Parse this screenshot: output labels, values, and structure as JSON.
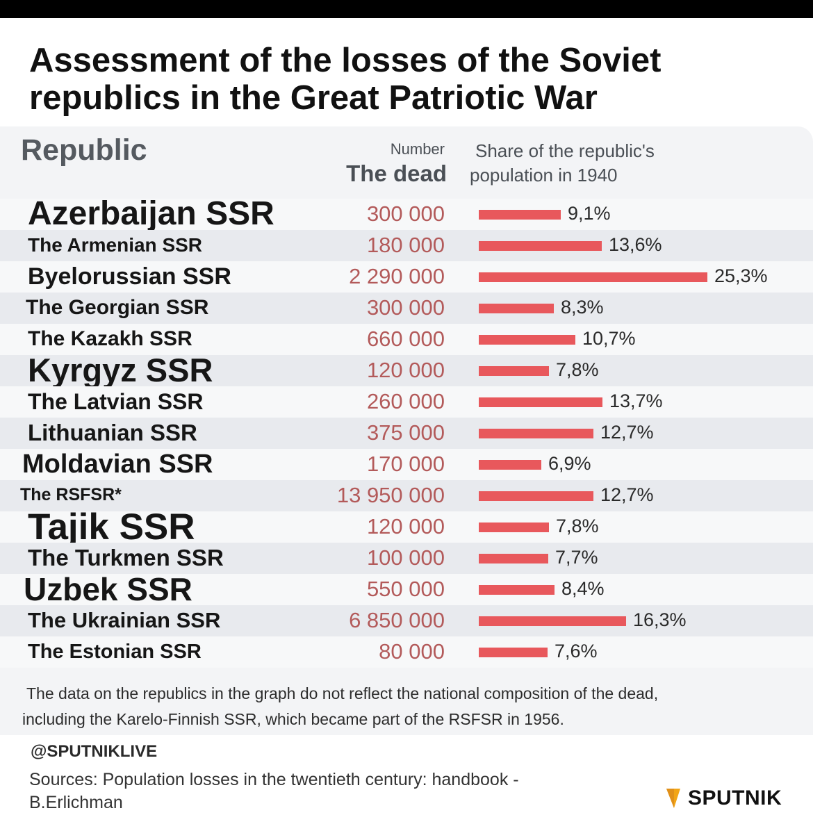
{
  "title": "Assessment of the losses of the Soviet republics in the Great Patriotic War",
  "header": {
    "republic": "Republic",
    "number": "Number",
    "the_dead": "The dead",
    "share_line1": "Share of the republic's",
    "share_line2": "population in 1940"
  },
  "chart_data": {
    "type": "bar",
    "title": "Assessment of the losses of the Soviet republics in the Great Patriotic War",
    "xlabel": "Share of the republic's population in 1940",
    "ylabel": "Republic",
    "categories": [
      "Azerbaijan SSR",
      "The Armenian SSR",
      "Byelorussian SSR",
      "The Georgian SSR",
      "The Kazakh SSR",
      "Kyrgyz SSR",
      "The Latvian SSR",
      "Lithuanian SSR",
      "Moldavian SSR",
      "The RSFSR*",
      "Tajik SSR",
      "The Turkmen SSR",
      "Uzbek SSR",
      "The Ukrainian SSR",
      "The Estonian SSR"
    ],
    "series": [
      {
        "name": "Number - The dead",
        "values": [
          300000,
          180000,
          2290000,
          300000,
          660000,
          120000,
          260000,
          375000,
          170000,
          13950000,
          120000,
          100000,
          550000,
          6850000,
          80000
        ]
      },
      {
        "name": "Share of the republic's population in 1940 (%)",
        "values": [
          9.1,
          13.6,
          25.3,
          8.3,
          10.7,
          7.8,
          13.7,
          12.7,
          6.9,
          12.7,
          7.8,
          7.7,
          8.4,
          16.3,
          7.6
        ]
      }
    ],
    "rows": [
      {
        "name": "Azerbaijan SSR",
        "dead": "300 000",
        "share": 9.1,
        "label": "9,1%"
      },
      {
        "name": "The Armenian SSR",
        "dead": "180 000",
        "share": 13.6,
        "label": "13,6%"
      },
      {
        "name": "Byelorussian SSR",
        "dead": "2 290 000",
        "share": 25.3,
        "label": "25,3%"
      },
      {
        "name": "The Georgian SSR",
        "dead": "300 000",
        "share": 8.3,
        "label": "8,3%"
      },
      {
        "name": "The Kazakh SSR",
        "dead": "660 000",
        "share": 10.7,
        "label": "10,7%"
      },
      {
        "name": "Kyrgyz SSR",
        "dead": "120 000",
        "share": 7.8,
        "label": "7,8%"
      },
      {
        "name": "The Latvian SSR",
        "dead": "260 000",
        "share": 13.7,
        "label": "13,7%"
      },
      {
        "name": "Lithuanian SSR",
        "dead": "375 000",
        "share": 12.7,
        "label": "12,7%"
      },
      {
        "name": "Moldavian SSR",
        "dead": "170 000",
        "share": 6.9,
        "label": "6,9%"
      },
      {
        "name": "The RSFSR*",
        "dead": "13 950 000",
        "share": 12.7,
        "label": "12,7%"
      },
      {
        "name": "Tajik SSR",
        "dead": "120 000",
        "share": 7.8,
        "label": "7,8%"
      },
      {
        "name": "The Turkmen SSR",
        "dead": "100 000",
        "share": 7.7,
        "label": "7,7%"
      },
      {
        "name": "Uzbek SSR",
        "dead": "550 000",
        "share": 8.4,
        "label": "8,4%"
      },
      {
        "name": "The Ukrainian SSR",
        "dead": "6 850 000",
        "share": 16.3,
        "label": "16,3%"
      },
      {
        "name": "The Estonian SSR",
        "dead": "80 000",
        "share": 7.6,
        "label": "7,6%"
      }
    ],
    "bar_color": "#e8585c"
  },
  "note_line1": "The data on the republics in the graph do not reflect the national composition of the dead,",
  "note_line2": "including the Karelo-Finnish SSR, which became part of the RSFSR in 1956.",
  "handle": "@SPUTNIKLIVE",
  "sources_line1": "Sources: Population losses in the twentieth century: handbook -",
  "sources_line2": "B.Erlichman",
  "logo_text": "SPUTNIK",
  "logo_icon": "sputnik-shield-icon"
}
